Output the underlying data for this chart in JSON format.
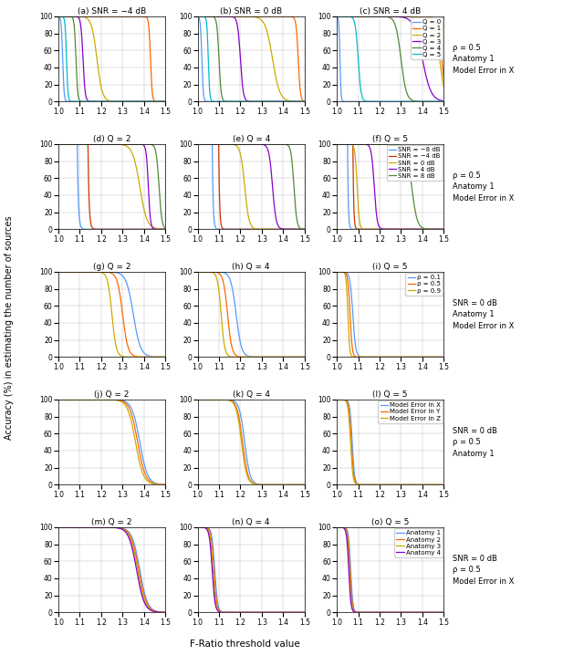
{
  "figsize": [
    6.4,
    7.18
  ],
  "dpi": 100,
  "subplot_titles": [
    "(a) SNR = −4 dB",
    "(b) SNR = 0 dB",
    "(c) SNR = 4 dB",
    "(d) Q = 2",
    "(e) Q = 4",
    "(f) Q = 5",
    "(g) Q = 2",
    "(h) Q = 4",
    "(i) Q = 5",
    "(j) Q = 2",
    "(k) Q = 4",
    "(l) Q = 5",
    "(m) Q = 2",
    "(n) Q = 4",
    "(o) Q = 5"
  ],
  "right_labels": [
    "ρ = 0.5\nAnatomy 1\nModel Error in X",
    "ρ = 0.5\nAnatomy 1\nModel Error in X",
    "SNR = 0 dB\nAnatomy 1\nModel Error in X",
    "SNR = 0 dB\nρ = 0.5\nAnatomy 1",
    "SNR = 0 dB\nρ = 0.5\nModel Error in X"
  ],
  "xlabel": "F-Ratio threshold value",
  "ylabel": "Accuracy (%) in estimating the number of sources",
  "row1_colors": [
    "#5599ff",
    "#ff6600",
    "#ccaa00",
    "#8800cc",
    "#558833",
    "#00bbcc"
  ],
  "row1_labels": [
    "Q = 0",
    "Q = 1",
    "Q = 2",
    "Q = 3",
    "Q = 4",
    "Q = 5"
  ],
  "row2_colors": [
    "#5599ff",
    "#cc3300",
    "#ccaa00",
    "#8800cc",
    "#558833"
  ],
  "row2_labels": [
    "SNR = −8 dB",
    "SNR = −4 dB",
    "SNR = 0 dB",
    "SNR = 4 dB",
    "SNR = 8 dB"
  ],
  "row3_colors": [
    "#5599ff",
    "#ff6600",
    "#ccaa00"
  ],
  "row3_labels": [
    "ρ = 0.1",
    "ρ = 0.5",
    "ρ = 0.9"
  ],
  "row4_colors": [
    "#5599ff",
    "#ff6600",
    "#ccaa00"
  ],
  "row4_labels": [
    "Model Error in X",
    "Model Error in Y",
    "Model Error in Z"
  ],
  "row5_colors": [
    "#5599ff",
    "#ff6600",
    "#ccaa00",
    "#8800cc"
  ],
  "row5_labels": [
    "Anatomy 1",
    "Anatomy 2",
    "Anatomy 3",
    "Anatomy 4"
  ]
}
